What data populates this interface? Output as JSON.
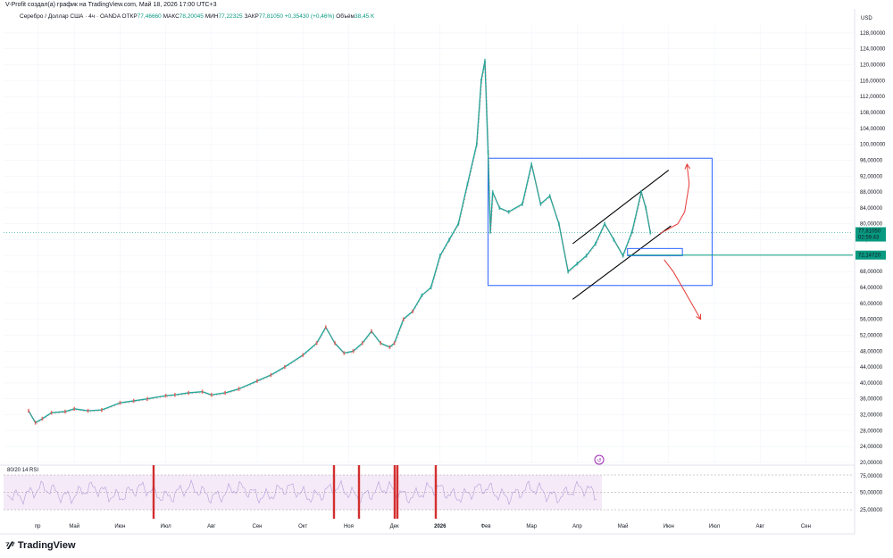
{
  "header": {
    "attribution": "V-Profit создал(а) график на TradingView.com, Май 18, 2026 17:00 UTC+3"
  },
  "legend": {
    "symbol": "Серебро / Доллар США · 4ч · OANDA",
    "open_label": "ОТКР",
    "open": "77,46660",
    "high_label": "МАКС",
    "high": "78,20045",
    "low_label": "МИН",
    "low": "77,22325",
    "close_label": "ЗАКР",
    "close": "77,81050",
    "change": "+0,35430 (+0,46%)",
    "volume_label": "Объём",
    "volume": "38,45 K"
  },
  "price_axis": {
    "currency": "USD"
  },
  "price_tags": {
    "last": {
      "value": "77,81050",
      "timer": "02:59:43",
      "color": "#089981"
    },
    "level": {
      "value": "72,14720",
      "color": "#089981"
    }
  },
  "rsi": {
    "label": "80/20 14 RSI",
    "ticks": [
      "75,00000",
      "50,00000",
      "25,00000"
    ]
  },
  "footer": {
    "brand": "TradingView"
  },
  "chart_data": {
    "type": "line",
    "title": "Серебро / Доллар США · 4ч · OANDA",
    "xlabel": "",
    "ylabel": "USD",
    "ylim": [
      20,
      130
    ],
    "y_ticks": [
      "128,00000",
      "124,00000",
      "120,00000",
      "116,00000",
      "112,00000",
      "108,00000",
      "104,00000",
      "100,00000",
      "96,00000",
      "92,00000",
      "88,00000",
      "84,00000",
      "80,00000",
      "76,00000",
      "72,00000",
      "68,00000",
      "64,00000",
      "60,00000",
      "56,00000",
      "52,00000",
      "48,00000",
      "44,00000",
      "40,00000",
      "36,00000",
      "32,00000",
      "28,00000",
      "24,00000",
      "20,00000"
    ],
    "x_ticks": [
      {
        "label": "пр",
        "t": 0.2
      },
      {
        "label": "Май",
        "t": 1
      },
      {
        "label": "Июн",
        "t": 2
      },
      {
        "label": "Июл",
        "t": 3
      },
      {
        "label": "Авг",
        "t": 4
      },
      {
        "label": "Сен",
        "t": 5
      },
      {
        "label": "Окт",
        "t": 6
      },
      {
        "label": "Ноя",
        "t": 7
      },
      {
        "label": "Дек",
        "t": 8
      },
      {
        "label": "2026",
        "t": 9,
        "bold": true
      },
      {
        "label": "Фев",
        "t": 10
      },
      {
        "label": "Мар",
        "t": 11
      },
      {
        "label": "Апр",
        "t": 12
      },
      {
        "label": "Май",
        "t": 13
      },
      {
        "label": "Июн",
        "t": 14
      },
      {
        "label": "Июл",
        "t": 15
      },
      {
        "label": "Авг",
        "t": 16
      },
      {
        "label": "Сен",
        "t": 17
      }
    ],
    "series": [
      {
        "values": [
          [
            0,
            33
          ],
          [
            0.15,
            30
          ],
          [
            0.3,
            31
          ],
          [
            0.5,
            32.5
          ],
          [
            0.8,
            32.8
          ],
          [
            1,
            33.5
          ],
          [
            1.3,
            33
          ],
          [
            1.6,
            33.2
          ],
          [
            2,
            35
          ],
          [
            2.3,
            35.5
          ],
          [
            2.6,
            36
          ],
          [
            3,
            36.8
          ],
          [
            3.2,
            37
          ],
          [
            3.5,
            37.5
          ],
          [
            3.8,
            37.8
          ],
          [
            4,
            37
          ],
          [
            4.3,
            37.5
          ],
          [
            4.6,
            38.5
          ],
          [
            5,
            40.5
          ],
          [
            5.3,
            42
          ],
          [
            5.6,
            44
          ],
          [
            6,
            47
          ],
          [
            6.3,
            50
          ],
          [
            6.5,
            54
          ],
          [
            6.7,
            50
          ],
          [
            6.9,
            47.5
          ],
          [
            7.1,
            48
          ],
          [
            7.3,
            50
          ],
          [
            7.5,
            53
          ],
          [
            7.7,
            50
          ],
          [
            7.9,
            49
          ],
          [
            8,
            50
          ],
          [
            8.2,
            56
          ],
          [
            8.4,
            58
          ],
          [
            8.6,
            62
          ],
          [
            8.8,
            64
          ],
          [
            9,
            72
          ],
          [
            9.2,
            76
          ],
          [
            9.4,
            80
          ],
          [
            9.6,
            90
          ],
          [
            9.8,
            100
          ],
          [
            9.9,
            116
          ],
          [
            9.98,
            121
          ],
          [
            10.05,
            98
          ],
          [
            10.1,
            78
          ],
          [
            10.15,
            88
          ],
          [
            10.3,
            84
          ],
          [
            10.5,
            83
          ],
          [
            10.8,
            85
          ],
          [
            11,
            95
          ],
          [
            11.2,
            85
          ],
          [
            11.4,
            87
          ],
          [
            11.6,
            80
          ],
          [
            11.8,
            68
          ],
          [
            12,
            70
          ],
          [
            12.2,
            72
          ],
          [
            12.4,
            75
          ],
          [
            12.6,
            80
          ],
          [
            12.8,
            76
          ],
          [
            13,
            72
          ],
          [
            13.2,
            78
          ],
          [
            13.4,
            88
          ],
          [
            13.5,
            84
          ],
          [
            13.6,
            77.8
          ]
        ]
      }
    ],
    "annotations": {
      "rectangle": {
        "t0": 10.05,
        "t1": 14.95,
        "p0": 64.5,
        "p1": 96.5
      },
      "channel_upper": {
        "t0": 11.9,
        "p0": 75,
        "t1": 14.0,
        "p1": 93.5
      },
      "channel_lower": {
        "t0": 11.9,
        "p0": 61,
        "t1": 14.05,
        "p1": 79.5
      },
      "horizontal_level": 72.147,
      "small_box": {
        "t0": 13.1,
        "t1": 14.3,
        "p0": 72.0,
        "p1": 73.8
      },
      "scenario_up": [
        [
          13.8,
          77.5
        ],
        [
          14.2,
          80
        ],
        [
          14.35,
          83
        ],
        [
          14.45,
          90
        ],
        [
          14.4,
          95
        ]
      ],
      "scenario_down": [
        [
          13.9,
          71
        ],
        [
          14.1,
          68
        ],
        [
          14.3,
          64
        ],
        [
          14.5,
          60
        ],
        [
          14.7,
          56
        ]
      ]
    },
    "grid": true,
    "legend": "top-left"
  }
}
